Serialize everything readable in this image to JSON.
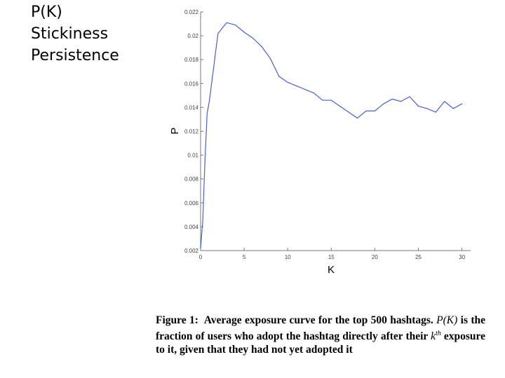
{
  "slide": {
    "lines": [
      "P(K)",
      "Stickiness",
      "Persistence"
    ]
  },
  "chart_data": {
    "type": "line",
    "xlabel": "K",
    "ylabel": "P",
    "xlim": [
      0,
      31
    ],
    "ylim": [
      0.002,
      0.022
    ],
    "xticks": [
      0,
      5,
      10,
      15,
      20,
      25,
      30
    ],
    "yticks": [
      0.002,
      0.004,
      0.006,
      0.008,
      0.01,
      0.012,
      0.014,
      0.016,
      0.018,
      0.02,
      0.022
    ],
    "ytick_labels": [
      "0.002",
      "0.004",
      "0.006",
      "0.008",
      "0.01",
      "0.012",
      "0.014",
      "0.016",
      "0.018",
      "0.02",
      "0.022"
    ],
    "series": [
      {
        "name": "P(K)",
        "color": "#4a5fd0",
        "x": [
          0,
          0.25,
          0.5,
          0.75,
          1,
          2,
          3,
          4,
          5,
          6,
          7,
          8,
          9,
          10,
          11,
          12,
          13,
          14,
          15,
          16,
          17,
          18,
          19,
          20,
          21,
          22,
          23,
          24,
          25,
          26,
          27,
          28,
          29,
          30
        ],
        "y": [
          0.0022,
          0.0045,
          0.0095,
          0.0135,
          0.0145,
          0.0202,
          0.0211,
          0.0209,
          0.0203,
          0.0198,
          0.0191,
          0.0181,
          0.0166,
          0.0161,
          0.0158,
          0.0155,
          0.0152,
          0.0146,
          0.0146,
          0.0141,
          0.0136,
          0.0131,
          0.0137,
          0.0137,
          0.0143,
          0.0147,
          0.0145,
          0.0149,
          0.0141,
          0.0139,
          0.0136,
          0.0145,
          0.0139,
          0.0143
        ]
      }
    ]
  },
  "caption": {
    "prefix": "Figure 1:",
    "text1": "Average exposure curve for the top 500 hashtags.",
    "math_pk": "P(K)",
    "text2": "is the fraction of users who adopt the hashtag directly after their",
    "math_k": "k",
    "math_k_sup": "th",
    "text3": "exposure to it, given that they had not yet adopted it"
  }
}
